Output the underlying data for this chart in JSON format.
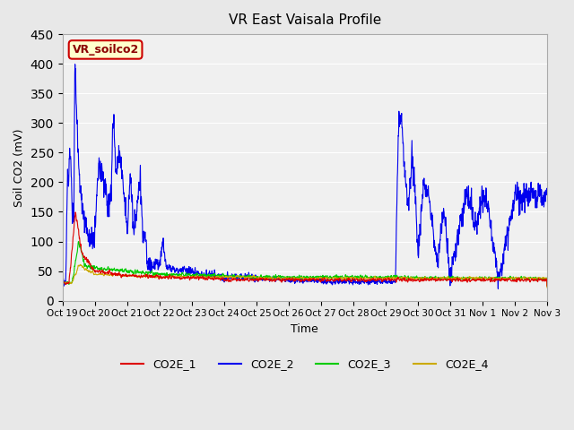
{
  "title": "VR East Vaisala Profile",
  "ylabel": "Soil CO2 (mV)",
  "xlabel": "Time",
  "annotation": "VR_soilco2",
  "ylim": [
    0,
    450
  ],
  "bg_color": "#e8e8e8",
  "plot_bg_color": "#f0f0f0",
  "legend_entries": [
    "CO2E_1",
    "CO2E_2",
    "CO2E_3",
    "CO2E_4"
  ],
  "line_colors": [
    "#dd0000",
    "#0000ee",
    "#00cc00",
    "#ccaa00"
  ],
  "xtick_labels": [
    "Oct 19",
    "Oct 20",
    "Oct 21",
    "Oct 22",
    "Oct 23",
    "Oct 24",
    "Oct 25",
    "Oct 26",
    "Oct 27",
    "Oct 28",
    "Oct 29",
    "Oct 30",
    "Oct 31",
    "Nov 1",
    "Nov 2",
    "Nov 3"
  ],
  "annotation_box_facecolor": "#ffffcc",
  "annotation_box_edgecolor": "#cc0000"
}
